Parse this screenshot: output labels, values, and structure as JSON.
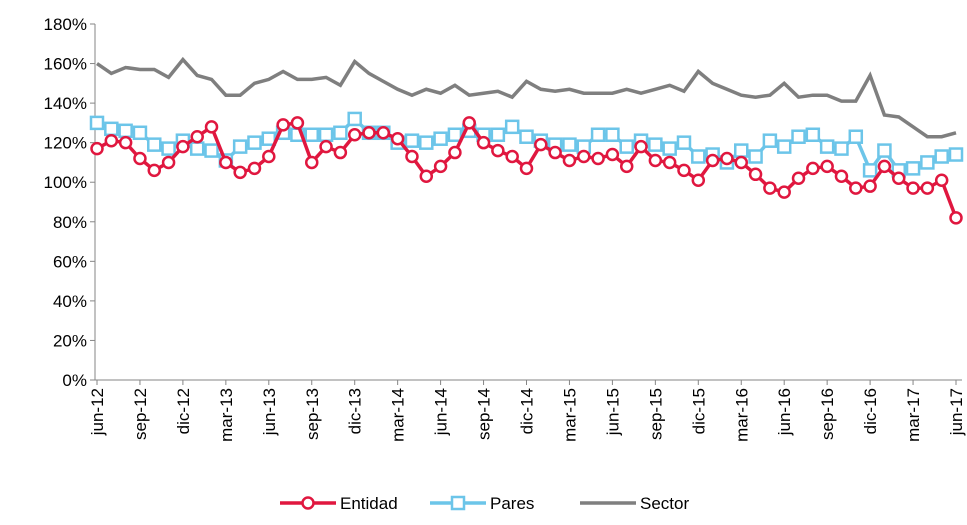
{
  "chart_data": {
    "type": "line",
    "categories": [
      "jun-12",
      null,
      null,
      "sep-12",
      null,
      null,
      "dic-12",
      null,
      null,
      "mar-13",
      null,
      null,
      "jun-13",
      null,
      null,
      "sep-13",
      null,
      null,
      "dic-13",
      null,
      null,
      "mar-14",
      null,
      null,
      "jun-14",
      null,
      null,
      "sep-14",
      null,
      null,
      "dic-14",
      null,
      null,
      "mar-15",
      null,
      null,
      "jun-15",
      null,
      null,
      "sep-15",
      null,
      null,
      "dic-15",
      null,
      null,
      "mar-16",
      null,
      null,
      "jun-16",
      null,
      null,
      "sep-16",
      null,
      null,
      "dic-16",
      null,
      null,
      "mar-17",
      null,
      null,
      "jun-17"
    ],
    "series": [
      {
        "name": "Entidad",
        "color": "#e0173f",
        "marker": "circle",
        "values": [
          117,
          121,
          120,
          112,
          106,
          110,
          118,
          123,
          128,
          110,
          105,
          107,
          113,
          129,
          130,
          110,
          118,
          115,
          124,
          125,
          125,
          122,
          113,
          103,
          108,
          115,
          130,
          120,
          116,
          113,
          107,
          119,
          115,
          111,
          113,
          112,
          114,
          108,
          118,
          111,
          110,
          106,
          101,
          111,
          112,
          110,
          104,
          97,
          95,
          102,
          107,
          108,
          103,
          97,
          98,
          108,
          102,
          97,
          97,
          101,
          82
        ]
      },
      {
        "name": "Pares",
        "color": "#6cc5e9",
        "marker": "square",
        "values": [
          130,
          127,
          126,
          125,
          119,
          117,
          121,
          117,
          116,
          111,
          118,
          120,
          122,
          125,
          124,
          124,
          124,
          125,
          132,
          125,
          125,
          120,
          121,
          120,
          122,
          124,
          126,
          124,
          124,
          128,
          123,
          121,
          119,
          119,
          118,
          124,
          124,
          118,
          121,
          119,
          117,
          120,
          113,
          114,
          110,
          116,
          113,
          121,
          118,
          123,
          124,
          118,
          117,
          123,
          106,
          116,
          106,
          107,
          110,
          113,
          114
        ]
      },
      {
        "name": "Sector",
        "color": "#7f7f7f",
        "marker": "none",
        "values": [
          160,
          155,
          158,
          157,
          157,
          153,
          162,
          154,
          152,
          144,
          144,
          150,
          152,
          156,
          152,
          152,
          153,
          149,
          161,
          155,
          151,
          147,
          144,
          147,
          145,
          149,
          144,
          145,
          146,
          143,
          151,
          147,
          146,
          147,
          145,
          145,
          145,
          147,
          145,
          147,
          149,
          146,
          156,
          150,
          147,
          144,
          143,
          144,
          150,
          143,
          144,
          144,
          141,
          141,
          154,
          134,
          133,
          128,
          123,
          123,
          125
        ]
      }
    ],
    "ylim": [
      0,
      180
    ],
    "yticks": [
      {
        "value": 0,
        "label": "0%"
      },
      {
        "value": 20,
        "label": "20%"
      },
      {
        "value": 40,
        "label": "40%"
      },
      {
        "value": 60,
        "label": "60%"
      },
      {
        "value": 80,
        "label": "80%"
      },
      {
        "value": 100,
        "label": "100%"
      },
      {
        "value": 120,
        "label": "120%"
      },
      {
        "value": 140,
        "label": "140%"
      },
      {
        "value": 160,
        "label": "160%"
      },
      {
        "value": 180,
        "label": "180%"
      }
    ],
    "legend": "bottom"
  }
}
